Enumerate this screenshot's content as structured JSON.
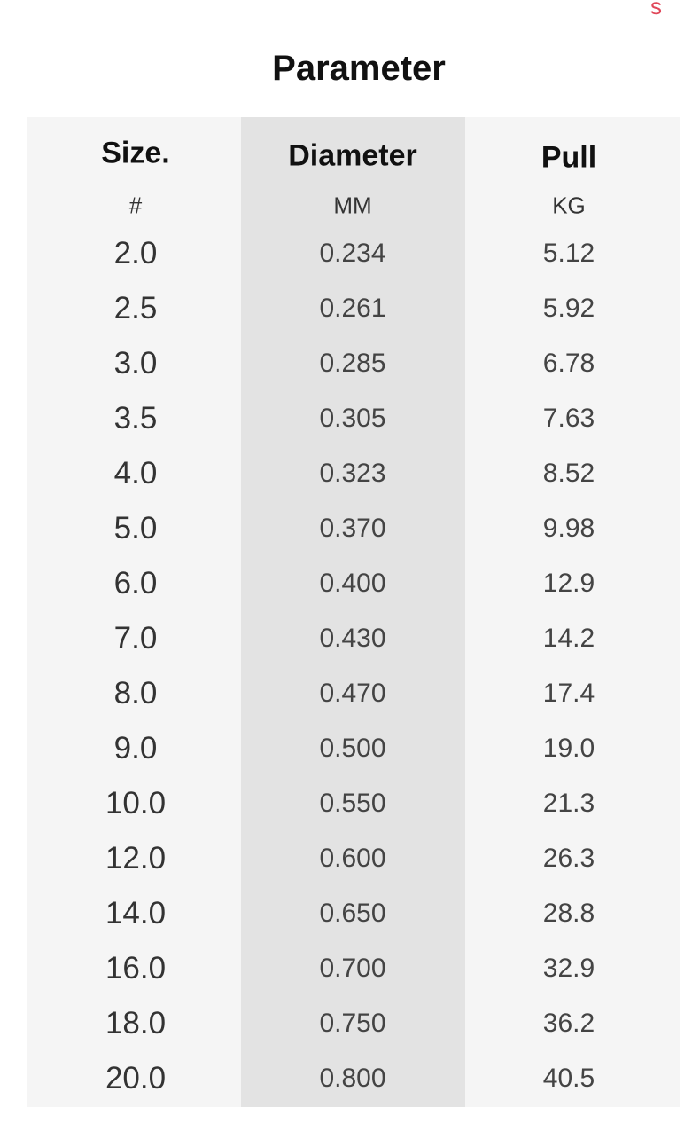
{
  "corner_fragment": "s",
  "title": "Parameter",
  "columns": [
    {
      "header": "Size.",
      "unit": "#"
    },
    {
      "header": "Diameter",
      "unit": "MM"
    },
    {
      "header": "Pull",
      "unit": "KG"
    }
  ],
  "rows": [
    [
      "2.0",
      "0.234",
      "5.12"
    ],
    [
      "2.5",
      "0.261",
      "5.92"
    ],
    [
      "3.0",
      "0.285",
      "6.78"
    ],
    [
      "3.5",
      "0.305",
      "7.63"
    ],
    [
      "4.0",
      "0.323",
      "8.52"
    ],
    [
      "5.0",
      "0.370",
      "9.98"
    ],
    [
      "6.0",
      "0.400",
      "12.9"
    ],
    [
      "7.0",
      "0.430",
      "14.2"
    ],
    [
      "8.0",
      "0.470",
      "17.4"
    ],
    [
      "9.0",
      "0.500",
      "19.0"
    ],
    [
      "10.0",
      "0.550",
      "21.3"
    ],
    [
      "12.0",
      "0.600",
      "26.3"
    ],
    [
      "14.0",
      "0.650",
      "28.8"
    ],
    [
      "16.0",
      "0.700",
      "32.9"
    ],
    [
      "18.0",
      "0.750",
      "36.2"
    ],
    [
      "20.0",
      "0.800",
      "40.5"
    ]
  ],
  "colors": {
    "table_bg": "#f5f5f5",
    "highlight_column": "#e3e3e3",
    "corner_text": "#e0485a"
  }
}
